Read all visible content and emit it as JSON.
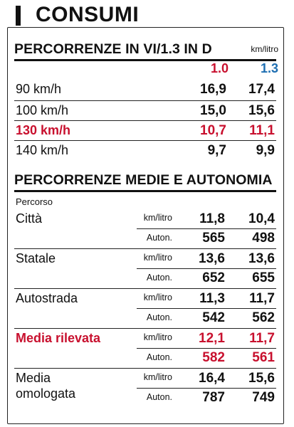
{
  "header": {
    "title": "CONSUMI"
  },
  "percorrenze": {
    "title": "PERCORRENZE IN VI/1.3 IN D",
    "unit": "km/litro",
    "col1": "1.0",
    "col2": "1.3",
    "rows": [
      {
        "label": "90 km/h",
        "v1": "16,9",
        "v2": "17,4"
      },
      {
        "label": "100 km/h",
        "v1": "15,0",
        "v2": "15,6"
      },
      {
        "label": "130 km/h",
        "v1": "10,7",
        "v2": "11,1"
      },
      {
        "label": "140 km/h",
        "v1": "9,7",
        "v2": "9,9"
      }
    ]
  },
  "medie": {
    "title": "PERCORRENZE MEDIE E AUTONOMIA",
    "percorso_label": "Percorso",
    "unit_km": "km/litro",
    "unit_auton": "Auton.",
    "groups": [
      {
        "name": "Città",
        "km1": "11,8",
        "km2": "10,4",
        "au1": "565",
        "au2": "498"
      },
      {
        "name": "Statale",
        "km1": "13,6",
        "km2": "13,6",
        "au1": "652",
        "au2": "655"
      },
      {
        "name": "Autostrada",
        "km1": "11,3",
        "km2": "11,7",
        "au1": "542",
        "au2": "562"
      },
      {
        "name": "Media rilevata",
        "km1": "12,1",
        "km2": "11,7",
        "au1": "582",
        "au2": "561"
      },
      {
        "name": "Media omologata",
        "km1": "16,4",
        "km2": "15,6",
        "au1": "787",
        "au2": "749"
      }
    ]
  }
}
